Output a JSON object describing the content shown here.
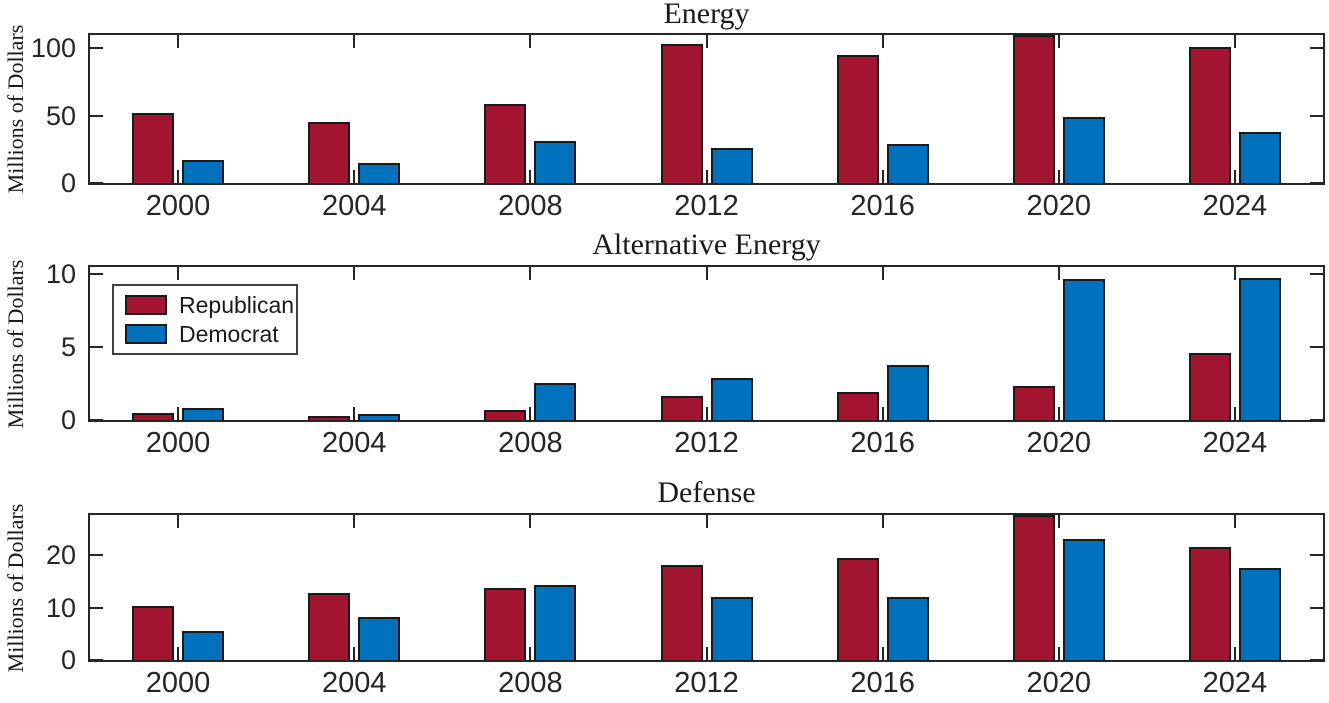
{
  "figure": {
    "background": "#ffffff",
    "axis_color": "#262626",
    "bar_edge_color": "#1a1a1a"
  },
  "legend": {
    "items": [
      {
        "label": "Republican",
        "color": "#A2142F"
      },
      {
        "label": "Democrat",
        "color": "#0072BD"
      }
    ]
  },
  "chart_data": [
    {
      "type": "bar",
      "title": "Energy",
      "ylabel": "Millions of Dollars",
      "xlabel": "",
      "categories": [
        "2000",
        "2004",
        "2008",
        "2012",
        "2016",
        "2020",
        "2024"
      ],
      "series": [
        {
          "name": "Republican",
          "color": "#A2142F",
          "values": [
            52,
            45,
            59,
            103,
            95,
            110,
            101
          ]
        },
        {
          "name": "Democrat",
          "color": "#0072BD",
          "values": [
            17,
            15,
            31,
            26,
            29,
            49,
            38
          ]
        }
      ],
      "ylim": [
        0,
        110
      ],
      "yticks": [
        0,
        50,
        100
      ],
      "grid": false,
      "legend_position": "none",
      "note": "Republican 2020 bar is clipped at the top of the axes"
    },
    {
      "type": "bar",
      "title": "Alternative Energy",
      "ylabel": "Millions of Dollars",
      "xlabel": "",
      "categories": [
        "2000",
        "2004",
        "2008",
        "2012",
        "2016",
        "2020",
        "2024"
      ],
      "series": [
        {
          "name": "Republican",
          "color": "#A2142F",
          "values": [
            0.45,
            0.25,
            0.7,
            1.65,
            1.9,
            2.35,
            4.6
          ]
        },
        {
          "name": "Democrat",
          "color": "#0072BD",
          "values": [
            0.8,
            0.4,
            2.55,
            2.9,
            3.8,
            9.7,
            9.75
          ]
        }
      ],
      "ylim": [
        0,
        10.5
      ],
      "yticks": [
        0,
        5,
        10
      ],
      "grid": false,
      "legend_position": "northwest"
    },
    {
      "type": "bar",
      "title": "Defense",
      "ylabel": "Millions of Dollars",
      "xlabel": "",
      "categories": [
        "2000",
        "2004",
        "2008",
        "2012",
        "2016",
        "2020",
        "2024"
      ],
      "series": [
        {
          "name": "Republican",
          "color": "#A2142F",
          "values": [
            10.3,
            12.8,
            13.8,
            18.1,
            19.5,
            28,
            21.5
          ]
        },
        {
          "name": "Democrat",
          "color": "#0072BD",
          "values": [
            5.5,
            8.2,
            14.4,
            12,
            12,
            23.1,
            17.6
          ]
        }
      ],
      "ylim": [
        0,
        27.7
      ],
      "yticks": [
        0,
        10,
        20
      ],
      "grid": false,
      "legend_position": "none",
      "note": "Republican 2020 bar is clipped at the top of the axes"
    }
  ]
}
